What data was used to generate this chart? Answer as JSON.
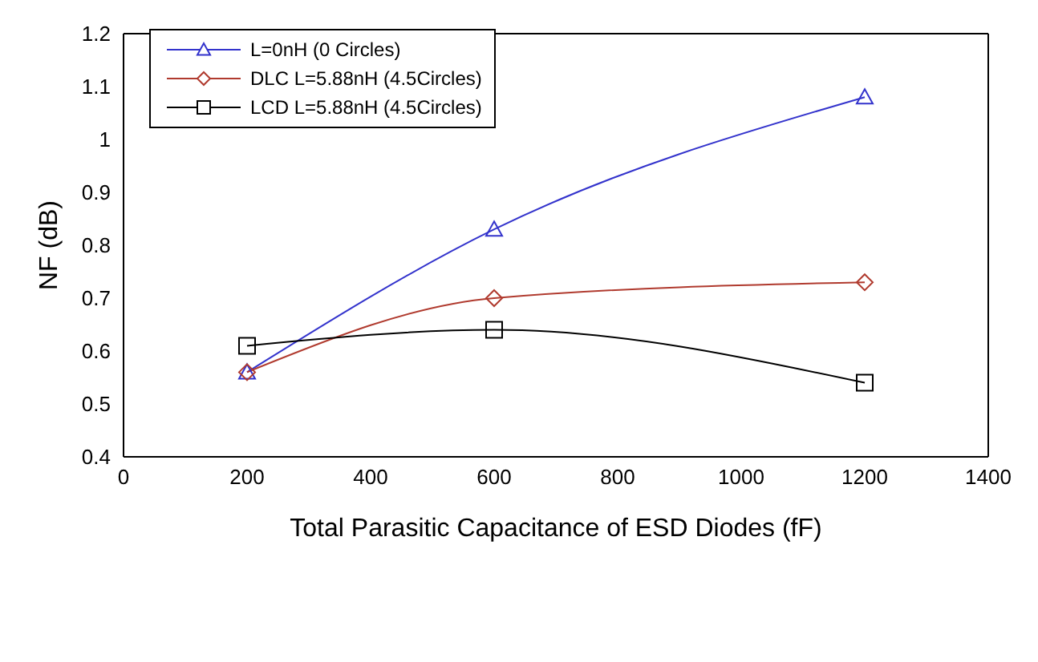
{
  "chart_data": {
    "type": "line",
    "xlabel": "Total Parasitic Capacitance of ESD Diodes (fF)",
    "ylabel": "NF (dB)",
    "x": [
      200,
      600,
      1200
    ],
    "series": [
      {
        "name": "L=0nH (0 Circles)",
        "color": "#3333cc",
        "marker": "triangle",
        "values": [
          0.56,
          0.83,
          1.08
        ]
      },
      {
        "name": "DLC L=5.88nH (4.5Circles)",
        "color": "#b03a2e",
        "marker": "diamond",
        "values": [
          0.56,
          0.7,
          0.73
        ]
      },
      {
        "name": "LCD L=5.88nH (4.5Circles)",
        "color": "#000000",
        "marker": "square",
        "values": [
          0.61,
          0.64,
          0.54
        ]
      }
    ],
    "xlim": [
      0,
      1400
    ],
    "xticks": [
      0,
      200,
      400,
      600,
      800,
      1000,
      1200,
      1400
    ],
    "ylim": [
      0.4,
      1.2
    ],
    "yticks": [
      0.4,
      0.5,
      0.6,
      0.7,
      0.8,
      0.9,
      1,
      1.1,
      1.2
    ],
    "grid": false,
    "legend": "top left",
    "line_style": "solid"
  }
}
